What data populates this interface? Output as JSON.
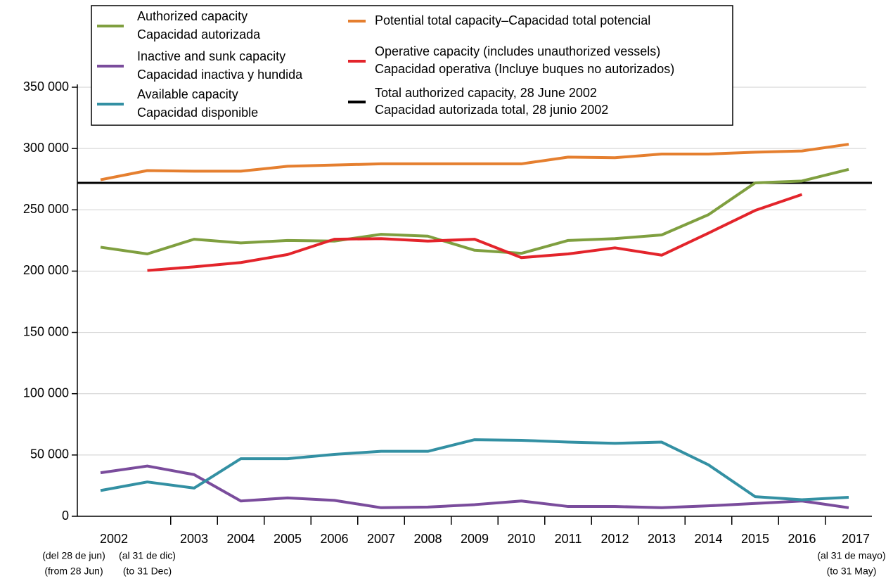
{
  "chart_data": {
    "type": "line",
    "categories": [
      "2002",
      null,
      "2003",
      "2004",
      "2005",
      "2006",
      "2007",
      "2008",
      "2009",
      "2010",
      "2011",
      "2012",
      "2013",
      "2014",
      "2015",
      "2016",
      "2017"
    ],
    "category_notes": [
      [
        "(del 28 de jun)",
        "(from 28 Jun)"
      ],
      [
        "(al 31 de dic)",
        "(to 31 Dec)"
      ],
      null,
      null,
      null,
      null,
      null,
      null,
      null,
      null,
      null,
      null,
      null,
      null,
      null,
      null,
      [
        "(al 31 de mayo)",
        "(to 31 May)"
      ]
    ],
    "ylim": [
      0,
      350000
    ],
    "yticks": [
      0,
      {
        "value": 50000,
        "label": "50 000"
      },
      {
        "value": 100000,
        "label": "100 000"
      },
      {
        "value": 150000,
        "label": "150 000"
      },
      {
        "value": 200000,
        "label": "200 000"
      },
      {
        "value": 250000,
        "label": "250 000"
      },
      {
        "value": 300000,
        "label": "300 000"
      },
      {
        "value": 350000,
        "label": "350 000"
      }
    ],
    "grid": true,
    "series": [
      {
        "name": "Authorized capacity",
        "name_es": "Capacidad autorizada",
        "color": "#7f9f3f",
        "values": [
          219500,
          214000,
          226000,
          223000,
          225000,
          224500,
          230000,
          228500,
          217000,
          214500,
          225000,
          226500,
          229500,
          246000,
          272000,
          273500,
          283000
        ]
      },
      {
        "name": "Inactive and sunk capacity",
        "name_es": "Capacidad inactiva y hundida",
        "color": "#7a4c9c",
        "values": [
          35500,
          41000,
          34000,
          12500,
          15000,
          13000,
          7000,
          7500,
          9500,
          12500,
          8000,
          8000,
          7000,
          8500,
          10500,
          12500,
          7000
        ]
      },
      {
        "name": "Available capacity",
        "name_es": "Capacidad disponible",
        "color": "#3390a3",
        "values": [
          21000,
          28000,
          23000,
          47000,
          47000,
          50500,
          53000,
          53000,
          62500,
          62000,
          60500,
          59500,
          60500,
          42000,
          16000,
          13500,
          15500
        ]
      },
      {
        "name": "Potential total capacity–Capacidad total potencial",
        "color": "#e57f2f",
        "values": [
          274500,
          282000,
          281500,
          281500,
          285500,
          286500,
          287500,
          287500,
          287500,
          287500,
          293000,
          292500,
          295500,
          295500,
          297000,
          298000,
          303500
        ]
      },
      {
        "name": "Operative capacity (includes unauthorized vessels)",
        "name_es": "Capacidad operativa (Incluye buques no autorizados)",
        "color": "#e3242b",
        "values": [
          null,
          200500,
          203500,
          207000,
          213500,
          226000,
          226500,
          224500,
          226000,
          211000,
          214000,
          219000,
          213000,
          231000,
          249500,
          262500,
          null
        ]
      }
    ],
    "reference_line": {
      "name": "Total authorized capacity, 28 June 2002",
      "name_es": "Capacidad autorizada total, 28 junio 2002",
      "value": 272000,
      "color": "#000000"
    }
  }
}
